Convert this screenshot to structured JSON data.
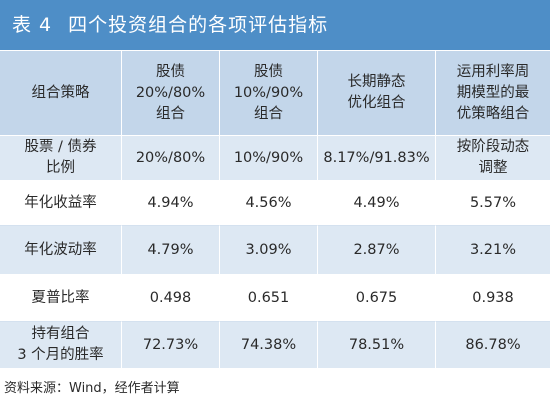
{
  "title": {
    "number": "表 4",
    "text": "四个投资组合的各项评估指标"
  },
  "header": [
    [
      "组合策略"
    ],
    [
      "股债",
      "20%/80%",
      "组合"
    ],
    [
      "股债",
      "10%/90%",
      "组合"
    ],
    [
      "长期静态",
      "优化组合"
    ],
    [
      "运用利率周",
      "期模型的最",
      "优策略组合"
    ]
  ],
  "rows": [
    {
      "label": [
        "股票 / 债券",
        "比例"
      ],
      "values": [
        "20%/80%",
        "10%/90%",
        "8.17%/91.83%",
        [
          "按阶段动态",
          "调整"
        ]
      ]
    },
    {
      "label": [
        "年化收益率"
      ],
      "values": [
        "4.94%",
        "4.56%",
        "4.49%",
        "5.57%"
      ]
    },
    {
      "label": [
        "年化波动率"
      ],
      "values": [
        "4.79%",
        "3.09%",
        "2.87%",
        "3.21%"
      ]
    },
    {
      "label": [
        "夏普比率"
      ],
      "values": [
        "0.498",
        "0.651",
        "0.675",
        "0.938"
      ]
    },
    {
      "label": [
        "持有组合",
        "3 个月的胜率"
      ],
      "values": [
        "72.73%",
        "74.38%",
        "78.51%",
        "86.78%"
      ]
    }
  ],
  "source": "资料来源：Wind，经作者计算",
  "colors": {
    "title_bg": "#4e8ec7",
    "header_bg": "#c3d6ea",
    "alt_row_bg": "#dde8f3"
  }
}
